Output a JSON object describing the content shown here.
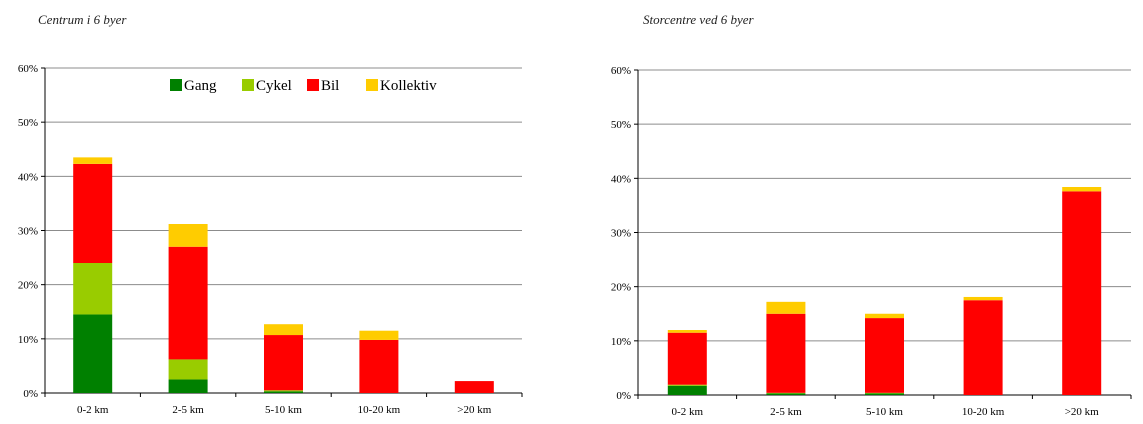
{
  "legend": [
    {
      "name": "Gang",
      "color": "#008000"
    },
    {
      "name": "Cykel",
      "color": "#99cc00"
    },
    {
      "name": "Bil",
      "color": "#ff0000"
    },
    {
      "name": "Kollektiv",
      "color": "#ffcc00"
    }
  ],
  "chart_data": [
    {
      "type": "bar",
      "stacked": true,
      "title": "Centrum i 6 byer",
      "categories": [
        "0-2 km",
        "2-5 km",
        "5-10 km",
        "10-20 km",
        ">20 km"
      ],
      "series": [
        {
          "name": "Gang",
          "color": "#008000",
          "values": [
            14.5,
            2.5,
            0.3,
            0.0,
            0.0
          ]
        },
        {
          "name": "Cykel",
          "color": "#99cc00",
          "values": [
            9.5,
            3.7,
            0.2,
            0.0,
            0.0
          ]
        },
        {
          "name": "Bil",
          "color": "#ff0000",
          "values": [
            18.3,
            20.8,
            10.2,
            9.8,
            2.2
          ]
        },
        {
          "name": "Kollektiv",
          "color": "#ffcc00",
          "values": [
            1.2,
            4.2,
            2.0,
            1.7,
            0.0
          ]
        }
      ],
      "ylim": [
        0,
        60
      ],
      "yticks": [
        "0%",
        "10%",
        "20%",
        "30%",
        "40%",
        "50%",
        "60%"
      ],
      "grid": true,
      "legend_position": "top-right"
    },
    {
      "type": "bar",
      "stacked": true,
      "title": "Storcentre ved 6 byer",
      "categories": [
        "0-2 km",
        "2-5 km",
        "5-10 km",
        "10-20 km",
        ">20 km"
      ],
      "series": [
        {
          "name": "Gang",
          "color": "#008000",
          "values": [
            1.7,
            0.3,
            0.3,
            0.0,
            0.0
          ]
        },
        {
          "name": "Cykel",
          "color": "#99cc00",
          "values": [
            0.2,
            0.1,
            0.1,
            0.0,
            0.0
          ]
        },
        {
          "name": "Bil",
          "color": "#ff0000",
          "values": [
            9.6,
            14.6,
            13.8,
            17.5,
            37.6
          ]
        },
        {
          "name": "Kollektiv",
          "color": "#ffcc00",
          "values": [
            0.5,
            2.2,
            0.8,
            0.6,
            0.8
          ]
        }
      ],
      "ylim": [
        0,
        60
      ],
      "yticks": [
        "0%",
        "10%",
        "20%",
        "30%",
        "40%",
        "50%",
        "60%"
      ],
      "grid": true
    }
  ]
}
